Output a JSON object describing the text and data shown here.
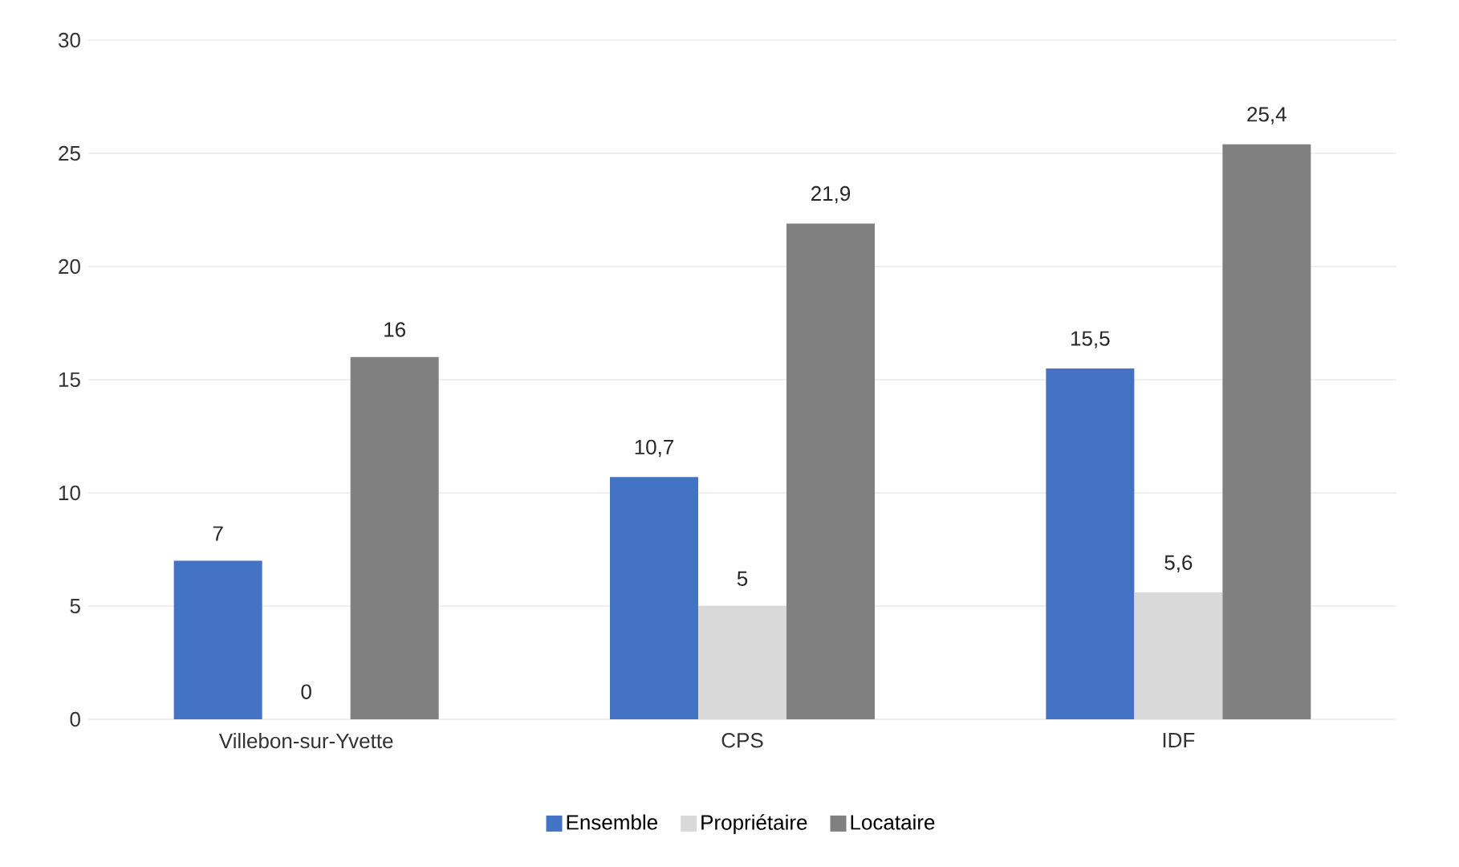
{
  "chart_data": {
    "type": "bar",
    "categories": [
      "Villebon-sur-Yvette",
      "CPS",
      "IDF"
    ],
    "series": [
      {
        "name": "Ensemble",
        "color": "#4472c4",
        "values": [
          7,
          10.7,
          15.5
        ],
        "value_labels": [
          "7",
          "10,7",
          "15,5"
        ]
      },
      {
        "name": "Propriétaire",
        "color": "#d9d9d9",
        "values": [
          0,
          5,
          5.6
        ],
        "value_labels": [
          "0",
          "5",
          "5,6"
        ]
      },
      {
        "name": "Locataire",
        "color": "#808080",
        "values": [
          16,
          21.9,
          25.4
        ],
        "value_labels": [
          "16",
          "21,9",
          "25,4"
        ]
      }
    ],
    "ylim": [
      0,
      30
    ],
    "yticks": [
      0,
      5,
      10,
      15,
      20,
      25,
      30
    ],
    "grid": "y",
    "legend": "bottom"
  }
}
